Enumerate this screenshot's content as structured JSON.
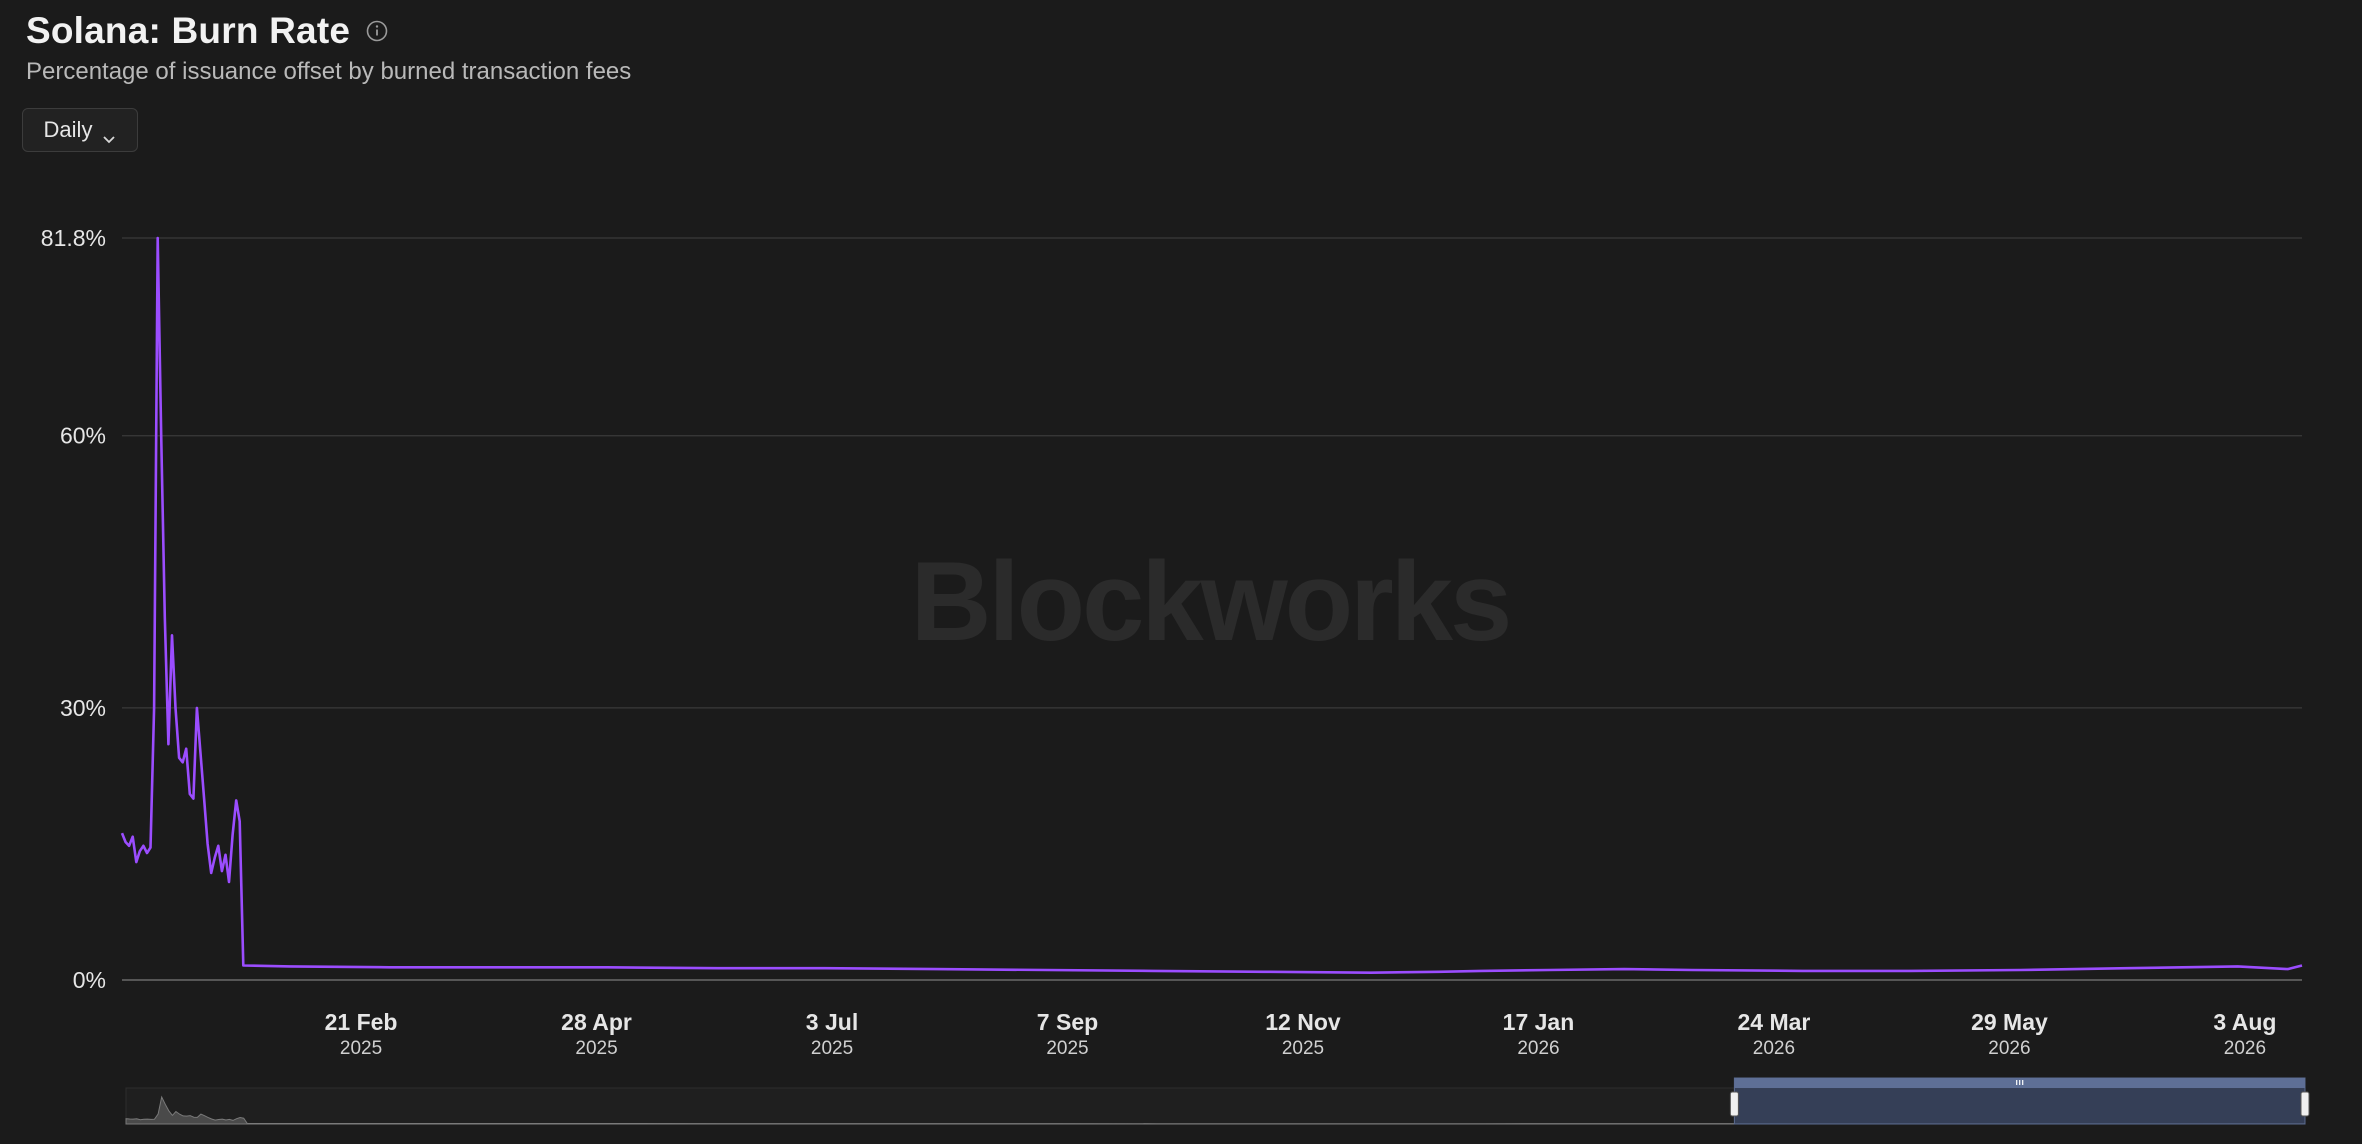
{
  "header": {
    "title": "Solana: Burn Rate",
    "subtitle": "Percentage of issuance offset by burned transaction fees",
    "info_icon": "info-icon"
  },
  "controls": {
    "interval_label": "Daily",
    "interval_icon": "chevron-down-icon"
  },
  "watermark": "Blockworks",
  "colors": {
    "background": "#1b1b1b",
    "series": "#9b4dff",
    "grid": "#3a3a3a",
    "navigator_selection": "#3a4561"
  },
  "chart_data": {
    "type": "line",
    "title": "Solana: Burn Rate",
    "subtitle": "Percentage of issuance offset by burned transaction fees",
    "ylabel": "",
    "xlabel": "",
    "ylim": [
      0,
      81.8
    ],
    "y_ticks": [
      "81.8%",
      "60%",
      "30%",
      "0%"
    ],
    "y_tick_values": [
      81.8,
      60,
      30,
      0
    ],
    "x_ticks": [
      {
        "label": "21 Feb",
        "year": "2025",
        "date": "2025-02-21"
      },
      {
        "label": "28 Apr",
        "year": "2025",
        "date": "2025-04-28"
      },
      {
        "label": "3 Jul",
        "year": "2025",
        "date": "2025-07-03"
      },
      {
        "label": "7 Sep",
        "year": "2025",
        "date": "2025-09-07"
      },
      {
        "label": "12 Nov",
        "year": "2025",
        "date": "2025-11-12"
      },
      {
        "label": "17 Jan",
        "year": "2026",
        "date": "2026-01-17"
      },
      {
        "label": "24 Mar",
        "year": "2026",
        "date": "2026-03-24"
      },
      {
        "label": "29 May",
        "year": "2026",
        "date": "2026-05-29"
      },
      {
        "label": "3 Aug",
        "year": "2026",
        "date": "2026-08-03"
      }
    ],
    "x_range": [
      "2024-12-16",
      "2026-08-19"
    ],
    "grid": true,
    "series": [
      {
        "color": "#9b4dff",
        "points": [
          [
            "2024-12-16",
            16.2
          ],
          [
            "2024-12-17",
            15.2
          ],
          [
            "2024-12-18",
            14.8
          ],
          [
            "2024-12-19",
            15.8
          ],
          [
            "2024-12-20",
            13.0
          ],
          [
            "2024-12-21",
            14.2
          ],
          [
            "2024-12-22",
            14.8
          ],
          [
            "2024-12-23",
            14.0
          ],
          [
            "2024-12-24",
            14.6
          ],
          [
            "2024-12-25",
            30.0
          ],
          [
            "2024-12-26",
            81.8
          ],
          [
            "2024-12-27",
            60.0
          ],
          [
            "2024-12-28",
            40.0
          ],
          [
            "2024-12-29",
            26.0
          ],
          [
            "2024-12-30",
            38.0
          ],
          [
            "2024-12-31",
            30.0
          ],
          [
            "2025-01-01",
            24.5
          ],
          [
            "2025-01-02",
            24.0
          ],
          [
            "2025-01-03",
            25.5
          ],
          [
            "2025-01-04",
            20.5
          ],
          [
            "2025-01-05",
            20.0
          ],
          [
            "2025-01-06",
            30.0
          ],
          [
            "2025-01-07",
            25.0
          ],
          [
            "2025-01-08",
            20.0
          ],
          [
            "2025-01-09",
            15.0
          ],
          [
            "2025-01-10",
            11.8
          ],
          [
            "2025-01-11",
            13.5
          ],
          [
            "2025-01-12",
            14.8
          ],
          [
            "2025-01-13",
            12.0
          ],
          [
            "2025-01-14",
            13.8
          ],
          [
            "2025-01-15",
            10.8
          ],
          [
            "2025-01-16",
            16.0
          ],
          [
            "2025-01-17",
            19.8
          ],
          [
            "2025-01-18",
            17.5
          ],
          [
            "2025-01-19",
            1.6
          ],
          [
            "2025-02-01",
            1.5
          ],
          [
            "2025-03-01",
            1.4
          ],
          [
            "2025-04-01",
            1.4
          ],
          [
            "2025-05-01",
            1.4
          ],
          [
            "2025-06-01",
            1.3
          ],
          [
            "2025-07-01",
            1.3
          ],
          [
            "2025-08-01",
            1.2
          ],
          [
            "2025-09-01",
            1.1
          ],
          [
            "2025-10-01",
            1.0
          ],
          [
            "2025-11-01",
            0.9
          ],
          [
            "2025-12-01",
            0.8
          ],
          [
            "2025-12-20",
            0.9
          ],
          [
            "2026-01-01",
            1.0
          ],
          [
            "2026-01-20",
            1.1
          ],
          [
            "2026-02-10",
            1.2
          ],
          [
            "2026-03-01",
            1.1
          ],
          [
            "2026-04-01",
            1.0
          ],
          [
            "2026-05-01",
            1.0
          ],
          [
            "2026-06-01",
            1.1
          ],
          [
            "2026-07-01",
            1.3
          ],
          [
            "2026-08-01",
            1.5
          ],
          [
            "2026-08-15",
            1.2
          ],
          [
            "2026-08-19",
            1.6
          ]
        ]
      }
    ],
    "navigator": {
      "selection_start": "2026-03-12",
      "selection_end": "2026-08-19"
    }
  }
}
